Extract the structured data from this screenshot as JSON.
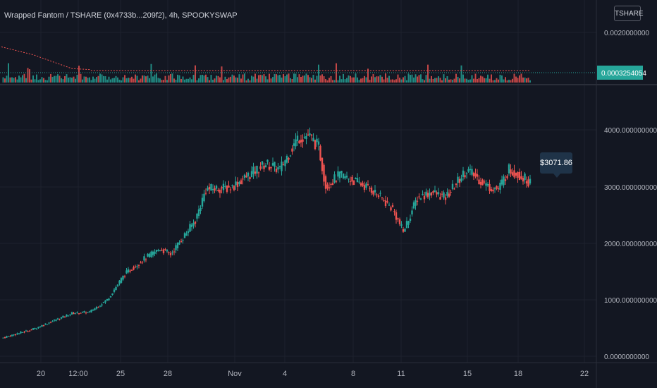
{
  "header": {
    "title": "Wrapped Fantom / TSHARE (0x4733b...209f2), 4h, SPOOKYSWAP",
    "symbol_button": "TSHARE"
  },
  "top_pane": {
    "y_labels": [
      "0.0020000000"
    ],
    "last_value_label": "0.0003254054"
  },
  "main_pane": {
    "y_labels": [
      "4000.0000000000",
      "3000.0000000000",
      "2000.0000000000",
      "1000.0000000000",
      "0.0000000000"
    ],
    "tooltip": "$3071.86"
  },
  "x_axis": {
    "labels": [
      "20",
      "12:00",
      "25",
      "28",
      "Nov",
      "4",
      "8",
      "11",
      "15",
      "18",
      "22"
    ]
  },
  "colors": {
    "background": "#131722",
    "up": "#26a69a",
    "down": "#ef5350",
    "grid": "#1e222d",
    "axis_text": "#b2b5be",
    "last_value_bg": "#26a69a"
  },
  "chart_data": {
    "type": "candlestick",
    "main_ylim": [
      -200,
      4800
    ],
    "key_closes": [
      [
        0,
        320
      ],
      [
        18,
        480
      ],
      [
        40,
        760
      ],
      [
        50,
        780
      ],
      [
        60,
        1000
      ],
      [
        70,
        1450
      ],
      [
        80,
        1700
      ],
      [
        90,
        1900
      ],
      [
        96,
        1800
      ],
      [
        110,
        2400
      ],
      [
        116,
        2950
      ],
      [
        130,
        2980
      ],
      [
        150,
        3400
      ],
      [
        158,
        3300
      ],
      [
        168,
        3850
      ],
      [
        174,
        3900
      ],
      [
        180,
        3700
      ],
      [
        184,
        3000
      ],
      [
        192,
        3200
      ],
      [
        200,
        3100
      ],
      [
        210,
        2950
      ],
      [
        222,
        2600
      ],
      [
        228,
        2200
      ],
      [
        236,
        2800
      ],
      [
        244,
        2900
      ],
      [
        252,
        2800
      ],
      [
        258,
        3050
      ],
      [
        264,
        3300
      ],
      [
        270,
        3150
      ],
      [
        276,
        3000
      ],
      [
        282,
        2950
      ],
      [
        288,
        3300
      ],
      [
        294,
        3200
      ],
      [
        300,
        3071.86
      ]
    ]
  }
}
